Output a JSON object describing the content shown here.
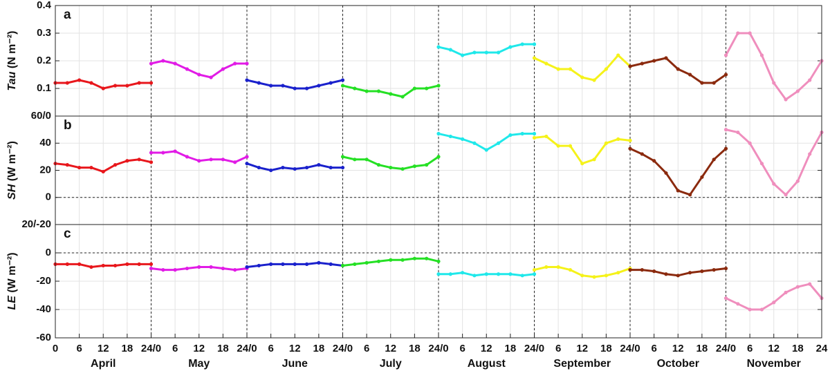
{
  "x_axis": {
    "months": [
      "April",
      "May",
      "June",
      "July",
      "August",
      "September",
      "October",
      "November"
    ],
    "xlim": [
      0,
      24
    ],
    "xticks": [
      0,
      6,
      12,
      18,
      24
    ],
    "xtick_joint": "24/0"
  },
  "chart_data": [
    {
      "type": "line",
      "panel_label": "a",
      "ylabel_var": "Tau",
      "ylabel_unit": " (N m⁻²)",
      "ylim": [
        0,
        0.4
      ],
      "yticks": [
        {
          "value": 0,
          "label": "60/0"
        },
        0.1,
        0.2,
        0.3,
        0.4
      ],
      "grid": true,
      "zero_line": false,
      "x": [
        0,
        3,
        6,
        9,
        12,
        15,
        18,
        21,
        24
      ],
      "series": [
        {
          "color": "#e8171c",
          "values": [
            0.12,
            0.12,
            0.13,
            0.12,
            0.1,
            0.11,
            0.11,
            0.12,
            0.12
          ]
        },
        {
          "color": "#e11be6",
          "values": [
            0.19,
            0.2,
            0.19,
            0.17,
            0.15,
            0.14,
            0.17,
            0.19,
            0.19
          ]
        },
        {
          "color": "#1a21cc",
          "values": [
            0.13,
            0.12,
            0.11,
            0.11,
            0.1,
            0.1,
            0.11,
            0.12,
            0.13
          ]
        },
        {
          "color": "#25e024",
          "values": [
            0.11,
            0.1,
            0.09,
            0.09,
            0.08,
            0.07,
            0.1,
            0.1,
            0.11
          ]
        },
        {
          "color": "#1fe8ea",
          "values": [
            0.25,
            0.24,
            0.22,
            0.23,
            0.23,
            0.23,
            0.25,
            0.26,
            0.26
          ]
        },
        {
          "color": "#f5f21a",
          "values": [
            0.21,
            0.19,
            0.17,
            0.17,
            0.14,
            0.13,
            0.17,
            0.22,
            0.18
          ]
        },
        {
          "color": "#8b2a0e",
          "values": [
            0.18,
            0.19,
            0.2,
            0.21,
            0.17,
            0.15,
            0.12,
            0.12,
            0.15
          ]
        },
        {
          "color": "#ef8ebd",
          "values": [
            0.22,
            0.3,
            0.3,
            0.22,
            0.12,
            0.06,
            0.09,
            0.13,
            0.2
          ]
        }
      ]
    },
    {
      "type": "line",
      "panel_label": "b",
      "ylabel_var": "SH",
      "ylabel_unit": " (W m⁻²)",
      "ylim": [
        -20,
        60
      ],
      "yticks": [
        {
          "value": -20,
          "label": "20/-20"
        },
        0,
        20,
        40
      ],
      "grid": true,
      "zero_line": true,
      "x": [
        0,
        3,
        6,
        9,
        12,
        15,
        18,
        21,
        24
      ],
      "series": [
        {
          "color": "#e8171c",
          "values": [
            25,
            24,
            22,
            22,
            19,
            24,
            27,
            28,
            26
          ]
        },
        {
          "color": "#e11be6",
          "values": [
            33,
            33,
            34,
            30,
            27,
            28,
            28,
            26,
            30
          ]
        },
        {
          "color": "#1a21cc",
          "values": [
            25,
            22,
            20,
            22,
            21,
            22,
            24,
            22,
            22
          ]
        },
        {
          "color": "#25e024",
          "values": [
            30,
            28,
            28,
            24,
            22,
            21,
            23,
            24,
            30
          ]
        },
        {
          "color": "#1fe8ea",
          "values": [
            47,
            45,
            43,
            40,
            35,
            40,
            46,
            47,
            47
          ]
        },
        {
          "color": "#f5f21a",
          "values": [
            44,
            45,
            38,
            38,
            25,
            28,
            40,
            43,
            42
          ]
        },
        {
          "color": "#8b2a0e",
          "values": [
            36,
            32,
            27,
            18,
            5,
            2,
            15,
            28,
            36
          ]
        },
        {
          "color": "#ef8ebd",
          "values": [
            50,
            48,
            40,
            25,
            10,
            2,
            12,
            32,
            48
          ]
        }
      ]
    },
    {
      "type": "line",
      "panel_label": "c",
      "ylabel_var": "LE",
      "ylabel_unit": " (W m⁻²)",
      "ylim": [
        -60,
        20
      ],
      "yticks": [
        -60,
        -40,
        -20,
        0
      ],
      "grid": true,
      "zero_line": true,
      "x": [
        0,
        3,
        6,
        9,
        12,
        15,
        18,
        21,
        24
      ],
      "series": [
        {
          "color": "#e8171c",
          "values": [
            -8,
            -8,
            -8,
            -10,
            -9,
            -9,
            -8,
            -8,
            -8
          ]
        },
        {
          "color": "#e11be6",
          "values": [
            -11,
            -12,
            -12,
            -11,
            -10,
            -10,
            -11,
            -12,
            -11
          ]
        },
        {
          "color": "#1a21cc",
          "values": [
            -10,
            -9,
            -8,
            -8,
            -8,
            -8,
            -7,
            -8,
            -9
          ]
        },
        {
          "color": "#25e024",
          "values": [
            -9,
            -8,
            -7,
            -6,
            -5,
            -5,
            -4,
            -4,
            -6
          ]
        },
        {
          "color": "#1fe8ea",
          "values": [
            -15,
            -15,
            -14,
            -16,
            -15,
            -15,
            -15,
            -16,
            -15
          ]
        },
        {
          "color": "#f5f21a",
          "values": [
            -12,
            -10,
            -10,
            -12,
            -16,
            -17,
            -16,
            -14,
            -11
          ]
        },
        {
          "color": "#8b2a0e",
          "values": [
            -12,
            -12,
            -13,
            -15,
            -16,
            -14,
            -13,
            -12,
            -11
          ]
        },
        {
          "color": "#ef8ebd",
          "values": [
            -32,
            -36,
            -40,
            -40,
            -35,
            -28,
            -24,
            -22,
            -32
          ]
        }
      ]
    }
  ]
}
